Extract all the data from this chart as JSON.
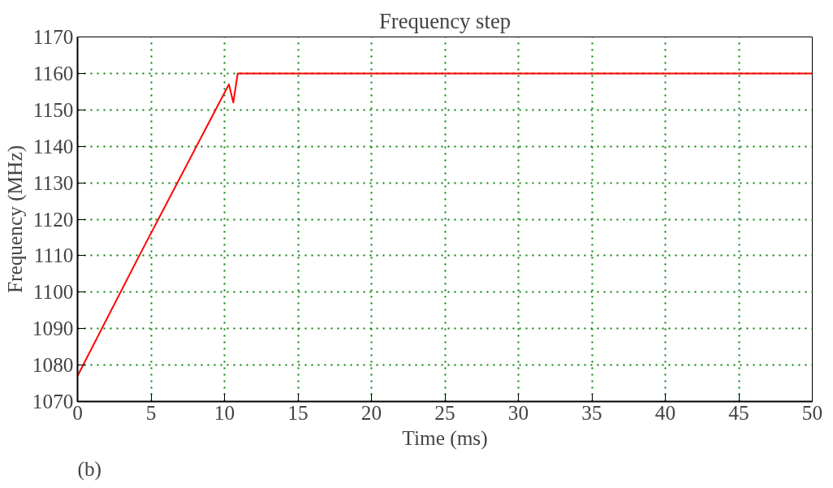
{
  "chart_data": {
    "type": "line",
    "title": "Frequency step",
    "xlabel": "Time (ms)",
    "ylabel": "Frequency (MHz)",
    "annotations": [
      "(b)"
    ],
    "series": [
      {
        "color": "#ff0000",
        "x": [
          0,
          4.2,
          10.3,
          10.6,
          10.9,
          50
        ],
        "values": [
          1077,
          1110,
          1157,
          1152,
          1160,
          1160
        ]
      }
    ],
    "xlim": [
      0,
      50
    ],
    "ylim": [
      1070,
      1170
    ],
    "xticks": [
      0,
      5,
      10,
      15,
      20,
      25,
      30,
      35,
      40,
      45,
      50
    ],
    "yticks": [
      1070,
      1080,
      1090,
      1100,
      1110,
      1120,
      1130,
      1140,
      1150,
      1160,
      1170
    ],
    "grid": true,
    "line_style": "solid",
    "marker": "none"
  }
}
